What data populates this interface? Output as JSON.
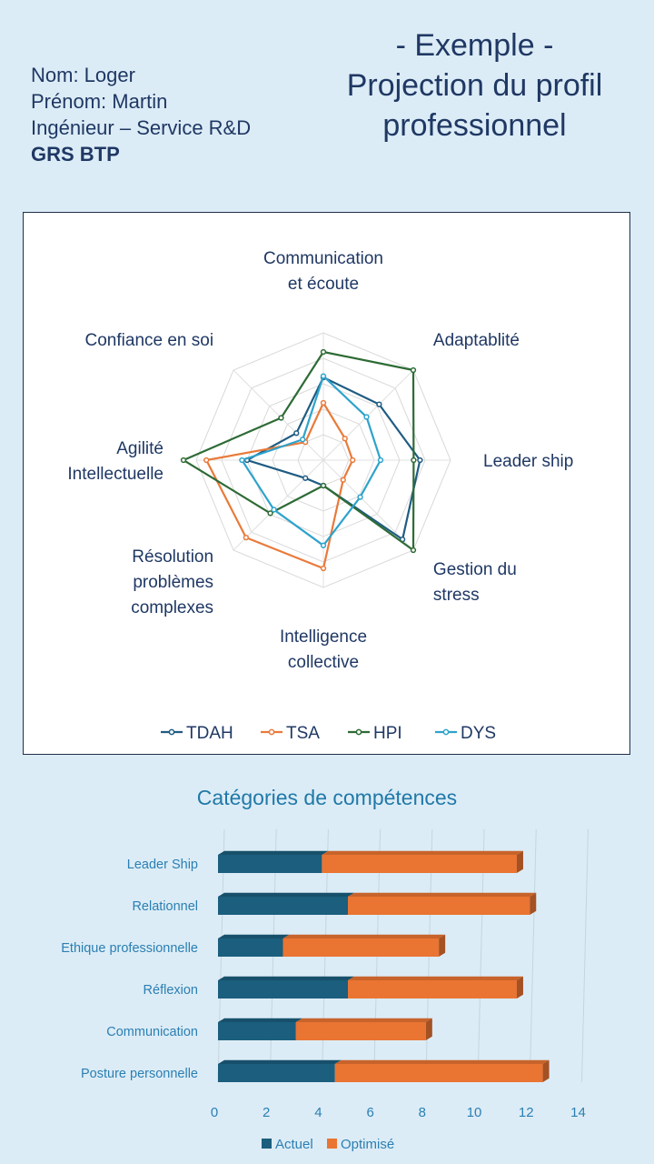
{
  "header": {
    "name_line": "Nom: Loger",
    "firstname_line": "Prénom: Martin",
    "role_line": "Ingénieur – Service R&D",
    "org": "GRS BTP",
    "title_line1": "- Exemple -",
    "title_line2": "Projection du profil",
    "title_line3": "professionnel"
  },
  "chart_data": [
    {
      "type": "radar",
      "title": "",
      "axes": [
        [
          "Communication",
          "et écoute"
        ],
        [
          "Adaptablité"
        ],
        [
          "Leader ship"
        ],
        [
          "Gestion du",
          "stress"
        ],
        [
          "Intelligence",
          "collective"
        ],
        [
          "Résolution",
          "problèmes",
          "complexes"
        ],
        [
          "Agilité",
          "Intellectuelle"
        ],
        [
          "Confiance en soi"
        ]
      ],
      "range": [
        0,
        10
      ],
      "series": [
        {
          "name": "TDAH",
          "color": "#1f5c82",
          "values": [
            6.5,
            6.2,
            7.6,
            8.8,
            2.0,
            2.0,
            6.0,
            3.0
          ]
        },
        {
          "name": "TSA",
          "color": "#e97a3a",
          "values": [
            4.5,
            2.4,
            2.3,
            2.2,
            8.5,
            8.6,
            9.2,
            2.0
          ]
        },
        {
          "name": "HPI",
          "color": "#2e6b35",
          "values": [
            8.5,
            10.0,
            7.1,
            10.0,
            2.0,
            5.9,
            11.0,
            4.7
          ]
        },
        {
          "name": "DYS",
          "color": "#2ea3cc",
          "values": [
            6.6,
            4.8,
            4.5,
            4.1,
            6.7,
            5.5,
            6.4,
            2.3
          ]
        }
      ]
    },
    {
      "type": "bar",
      "orientation": "horizontal",
      "stacked": true,
      "title": "Catégories de compétences",
      "categories": [
        "Leader Ship",
        "Relationnel",
        "Ethique professionnelle",
        "Réflexion",
        "Communication",
        "Posture personnelle"
      ],
      "series": [
        {
          "name": "Actuel",
          "color": "#1b5e7e",
          "values": [
            4.0,
            5.0,
            2.5,
            5.0,
            3.0,
            4.5
          ]
        },
        {
          "name": "Optimisé",
          "color": "#ea7432",
          "values": [
            7.5,
            7.0,
            6.0,
            6.5,
            5.0,
            8.0
          ]
        }
      ],
      "xlim": [
        0,
        14
      ],
      "xticks": [
        0,
        2,
        4,
        6,
        8,
        10,
        12,
        14
      ]
    }
  ]
}
